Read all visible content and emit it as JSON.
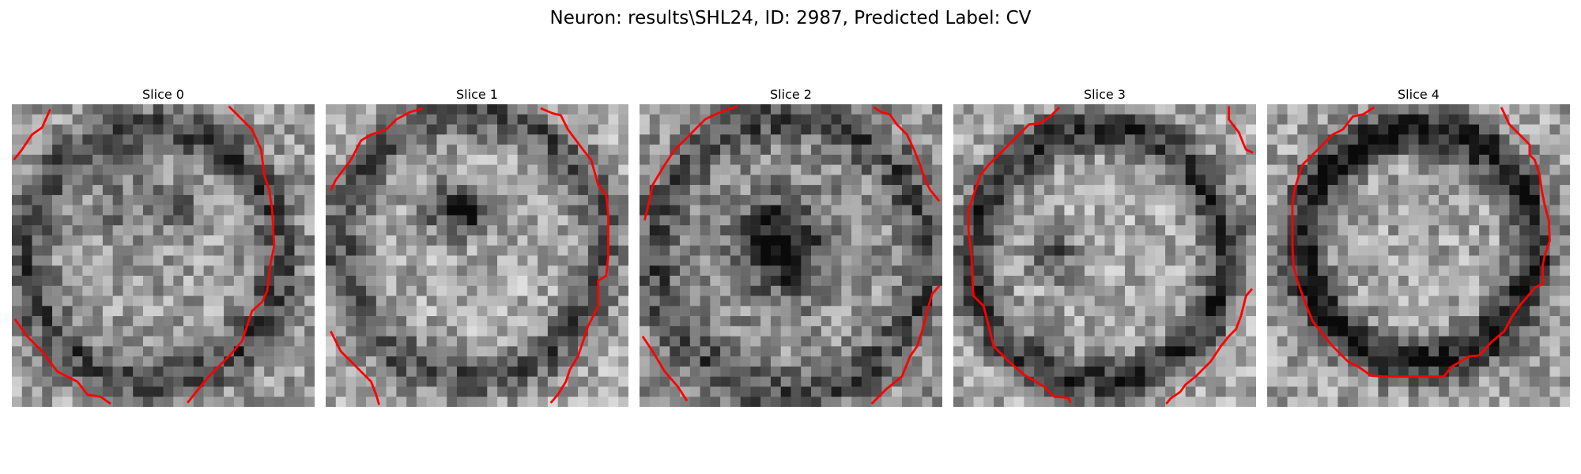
{
  "figure": {
    "title": "Neuron: results\\SHL24, ID: 2987, Predicted Label: CV"
  },
  "colors": {
    "contour": "#ff0000",
    "background": "#ffffff"
  },
  "panels": [
    {
      "title": "Slice 0"
    },
    {
      "title": "Slice 1"
    },
    {
      "title": "Slice 2"
    },
    {
      "title": "Slice 3"
    },
    {
      "title": "Slice 4"
    }
  ]
}
